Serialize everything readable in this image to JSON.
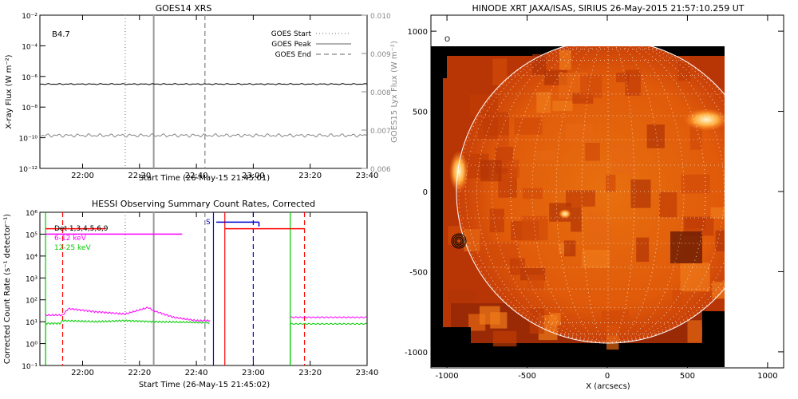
{
  "chart_data": [
    {
      "type": "line",
      "title": "GOES14 XRS",
      "xlabel": "Start Time (26-May-15 21:45:01)",
      "ylabel": "X-ray Flux (W m⁻²)",
      "y2label": "GOES15 Lyx Flux (W m⁻²)",
      "annotation": "B4.7",
      "x_ticks": [
        "22:00",
        "22:20",
        "22:40",
        "23:00",
        "23:20",
        "23:40"
      ],
      "y_ticks": [
        "10⁻¹²",
        "10⁻¹⁰",
        "10⁻⁸",
        "10⁻⁶",
        "10⁻⁴",
        "10⁻²"
      ],
      "y_log_exponents": [
        -12,
        -10,
        -8,
        -6,
        -4,
        -2
      ],
      "y2_ticks": [
        "0.006",
        "0.007",
        "0.008",
        "0.009",
        "0.010"
      ],
      "xlim_min": [
        105,
        220
      ],
      "ylim_log": [
        -12,
        -2
      ],
      "y2lim": [
        0.006,
        0.01
      ],
      "series": [
        {
          "name": "",
          "color": "#000000",
          "level_log": -6.5,
          "x": [
            105,
            220
          ]
        },
        {
          "name": "",
          "color": "#888888",
          "level_log": -9.85,
          "x": [
            105,
            220
          ]
        }
      ],
      "markers": [
        {
          "name": "GOES Start",
          "style": "dotted",
          "x_min": 135
        },
        {
          "name": "GOES Peak",
          "style": "solid",
          "x_min": 145
        },
        {
          "name": "GOES End",
          "style": "dashed",
          "x_min": 163
        }
      ],
      "legend": {
        "placement": "top-right",
        "entries": [
          "GOES Start",
          "GOES Peak",
          "GOES End"
        ]
      }
    },
    {
      "type": "line",
      "title": "HESSI Observing Summary Count Rates, Corrected",
      "xlabel": "Start Time (26-May-15 21:45:02)",
      "ylabel": "Corrected Count Rate (s⁻¹ detector⁻¹)",
      "x_ticks": [
        "22:00",
        "22:20",
        "22:40",
        "23:00",
        "23:20",
        "23:40"
      ],
      "y_ticks": [
        "10⁻¹",
        "10⁰",
        "10¹",
        "10²",
        "10³",
        "10⁴",
        "10⁵",
        "10⁶"
      ],
      "y_log_exponents": [
        -1,
        0,
        1,
        2,
        3,
        4,
        5,
        6
      ],
      "ylim_log": [
        -1,
        6
      ],
      "xlim_min": [
        105,
        220
      ],
      "series": [
        {
          "name": "6-12 keV",
          "color": "#ff00ff",
          "x": [
            107,
            113,
            115,
            125,
            135,
            143,
            145,
            152,
            160,
            165
          ],
          "y_log": [
            1.3,
            1.3,
            1.6,
            1.45,
            1.35,
            1.65,
            1.5,
            1.2,
            1.05,
            1.05
          ]
        },
        {
          "name": "12-25 keV",
          "color": "#00cc00",
          "x": [
            107,
            112,
            113,
            125,
            135,
            145,
            155,
            165
          ],
          "y_log": [
            0.92,
            0.92,
            1.05,
            1.0,
            1.05,
            1.0,
            0.98,
            0.95
          ]
        }
      ],
      "legend": {
        "placement": "top-left",
        "entries": [
          "Det 1,3,4,5,6,9",
          "6-12 keV",
          "12-25 keV"
        ]
      },
      "annotations": [
        {
          "text": "S"
        }
      ]
    },
    {
      "type": "heatmap",
      "title": "HINODE XRT JAXA/ISAS, SIRIUS 26-May-2015 21:57:10.259 UT",
      "xlabel": "X (arcsecs)",
      "ylabel": "",
      "x_ticks": [
        "-1000",
        "-500",
        "0",
        "500",
        "1000"
      ],
      "y_ticks": [
        "1000",
        "500",
        "0",
        "-500",
        "-1000"
      ],
      "xlim": [
        -1100,
        1100
      ],
      "ylim": [
        -1100,
        1100
      ],
      "corner_label": "O",
      "grid": true
    }
  ]
}
